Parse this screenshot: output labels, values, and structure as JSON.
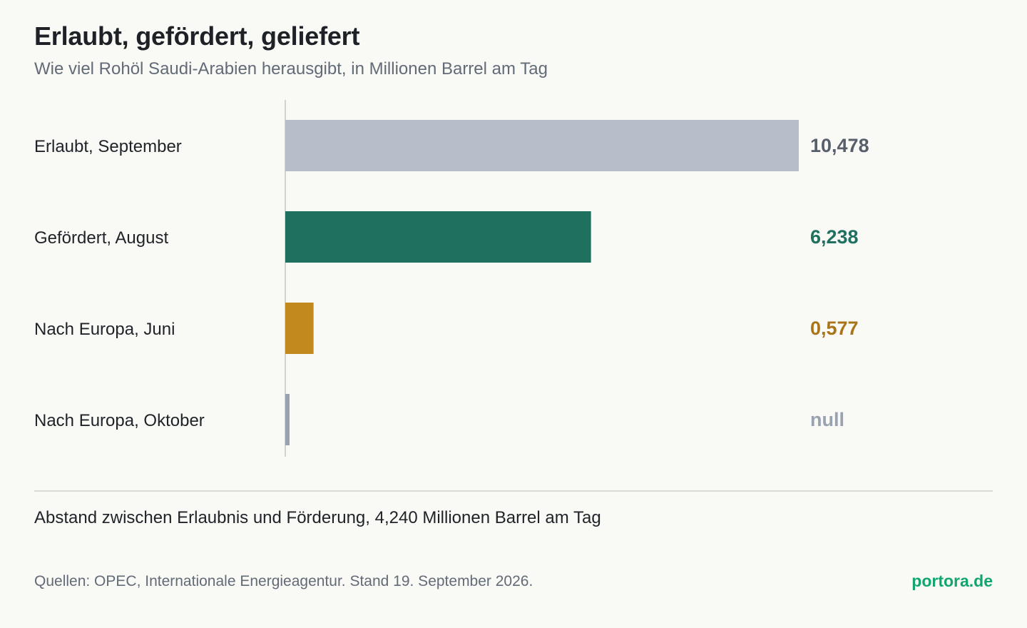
{
  "header": {
    "title": "Erlaubt, gefördert, geliefert",
    "subtitle": "Wie viel Rohöl Saudi-Arabien herausgibt, in Millionen Barrel am Tag"
  },
  "chart_data": {
    "type": "bar",
    "orientation": "horizontal",
    "categories": [
      "Erlaubt, September",
      "Gefördert, August",
      "Nach Europa, Juni",
      "Nach Europa, Oktober"
    ],
    "values": [
      10.478,
      6.238,
      0.577,
      0
    ],
    "value_labels": [
      "10,478",
      "6,238",
      "0,577",
      "null"
    ],
    "colors": [
      "#b8bec9",
      "#1f705f",
      "#c2891f",
      "#99a2b1"
    ],
    "label_colors": [
      "#575f6b",
      "#1f705f",
      "#a8751a",
      "#99a2b1"
    ],
    "xlim": [
      0,
      10.478
    ],
    "grid": false
  },
  "footer": {
    "note": "Abstand zwischen Erlaubnis und Förderung, 4,240 Millionen Barrel am Tag",
    "source": "Quellen: OPEC, Internationale Energieagentur. Stand 19. September 2026.",
    "brand": "portora.de"
  }
}
